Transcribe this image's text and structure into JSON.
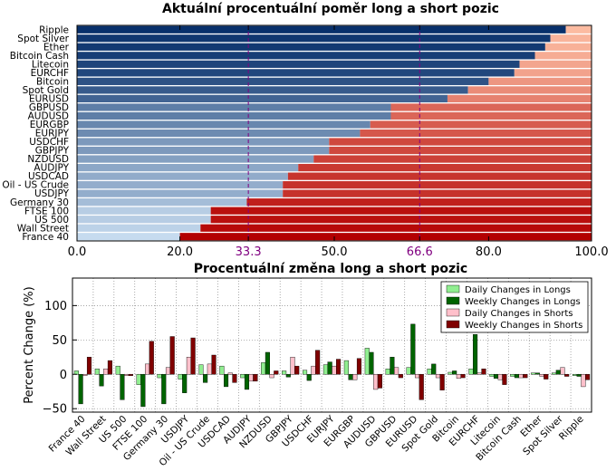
{
  "chart_data": [
    {
      "type": "bar",
      "orientation": "horizontal",
      "stacked": true,
      "title": "Aktuální procentuální poměr long a short pozic",
      "categories": [
        "Ripple",
        "Spot Silver",
        "Ether",
        "Bitcoin Cash",
        "Litecoin",
        "EURCHF",
        "Bitcoin",
        "Spot Gold",
        "EURUSD",
        "GBPUSD",
        "AUDUSD",
        "EURGBP",
        "EURJPY",
        "USDCHF",
        "GBPJPY",
        "NZDUSD",
        "AUDJPY",
        "USDCAD",
        "Oil - US Crude",
        "USDJPY",
        "Germany 30",
        "FTSE 100",
        "US 500",
        "Wall Street",
        "France 40"
      ],
      "long_percent": [
        95,
        92,
        91,
        89,
        86,
        85,
        80,
        76,
        72,
        61,
        61,
        57,
        55,
        49,
        49,
        46,
        43,
        41,
        40,
        40,
        33,
        26,
        26,
        24,
        20
      ],
      "xlim": [
        0,
        100
      ],
      "xticks": [
        "0.0",
        "20.0",
        "33.3",
        "50.0",
        "66.6",
        "80.0",
        "100.0"
      ],
      "reference_lines": [
        33.3,
        66.6
      ],
      "colors": {
        "long_dark": "#08306b",
        "long_light": "#c6dbef",
        "short_dark": "#b30000",
        "short_light": "#fcbba1",
        "reference": "#800080"
      }
    },
    {
      "type": "bar",
      "title": "Procentuální změna long a short pozic",
      "ylabel": "Percent Change (%)",
      "ylim": [
        -55,
        140
      ],
      "yticks": [
        "100",
        "50",
        "0",
        "−50"
      ],
      "grid": true,
      "legend_position": "top-right",
      "categories": [
        "France 40",
        "Wall Street",
        "US 500",
        "FTSE 100",
        "Germany 30",
        "USDJPY",
        "Oil - US Crude",
        "USDCAD",
        "AUDJPY",
        "NZDUSD",
        "GBPJPY",
        "USDCHF",
        "EURJPY",
        "EURGBP",
        "AUDUSD",
        "GBPUSD",
        "EURUSD",
        "Spot Gold",
        "Bitcoin",
        "EURCHF",
        "Litecoin",
        "Bitcoin Cash",
        "Ether",
        "Spot Silver",
        "Ripple"
      ],
      "series": [
        {
          "name": "Daily Changes in Longs",
          "color": "#90ee90",
          "values": [
            5,
            8,
            12,
            -15,
            -5,
            -7,
            14,
            12,
            -5,
            17,
            5,
            6,
            14,
            20,
            38,
            8,
            10,
            8,
            3,
            8,
            -3,
            -3,
            2,
            2,
            -2
          ]
        },
        {
          "name": "Weekly Changes in Longs",
          "color": "#006400",
          "values": [
            -43,
            -17,
            -37,
            -47,
            -43,
            -27,
            -12,
            -18,
            -22,
            32,
            -4,
            -9,
            18,
            -8,
            32,
            25,
            73,
            15,
            5,
            58,
            -6,
            -5,
            2,
            6,
            -3
          ]
        },
        {
          "name": "Daily Changes in Shorts",
          "color": "#ffc0cb",
          "values": [
            -2,
            8,
            -2,
            15,
            10,
            25,
            15,
            2,
            -10,
            -5,
            25,
            12,
            12,
            -8,
            -22,
            10,
            -5,
            -5,
            -6,
            2,
            -8,
            -5,
            -3,
            10,
            -18
          ]
        },
        {
          "name": "Weekly Changes in Shorts",
          "color": "#800000",
          "values": [
            25,
            20,
            -2,
            48,
            55,
            53,
            28,
            -12,
            -10,
            5,
            12,
            35,
            22,
            23,
            -20,
            -5,
            -37,
            -23,
            -5,
            8,
            -15,
            -5,
            -7,
            -3,
            -8
          ]
        }
      ]
    }
  ]
}
